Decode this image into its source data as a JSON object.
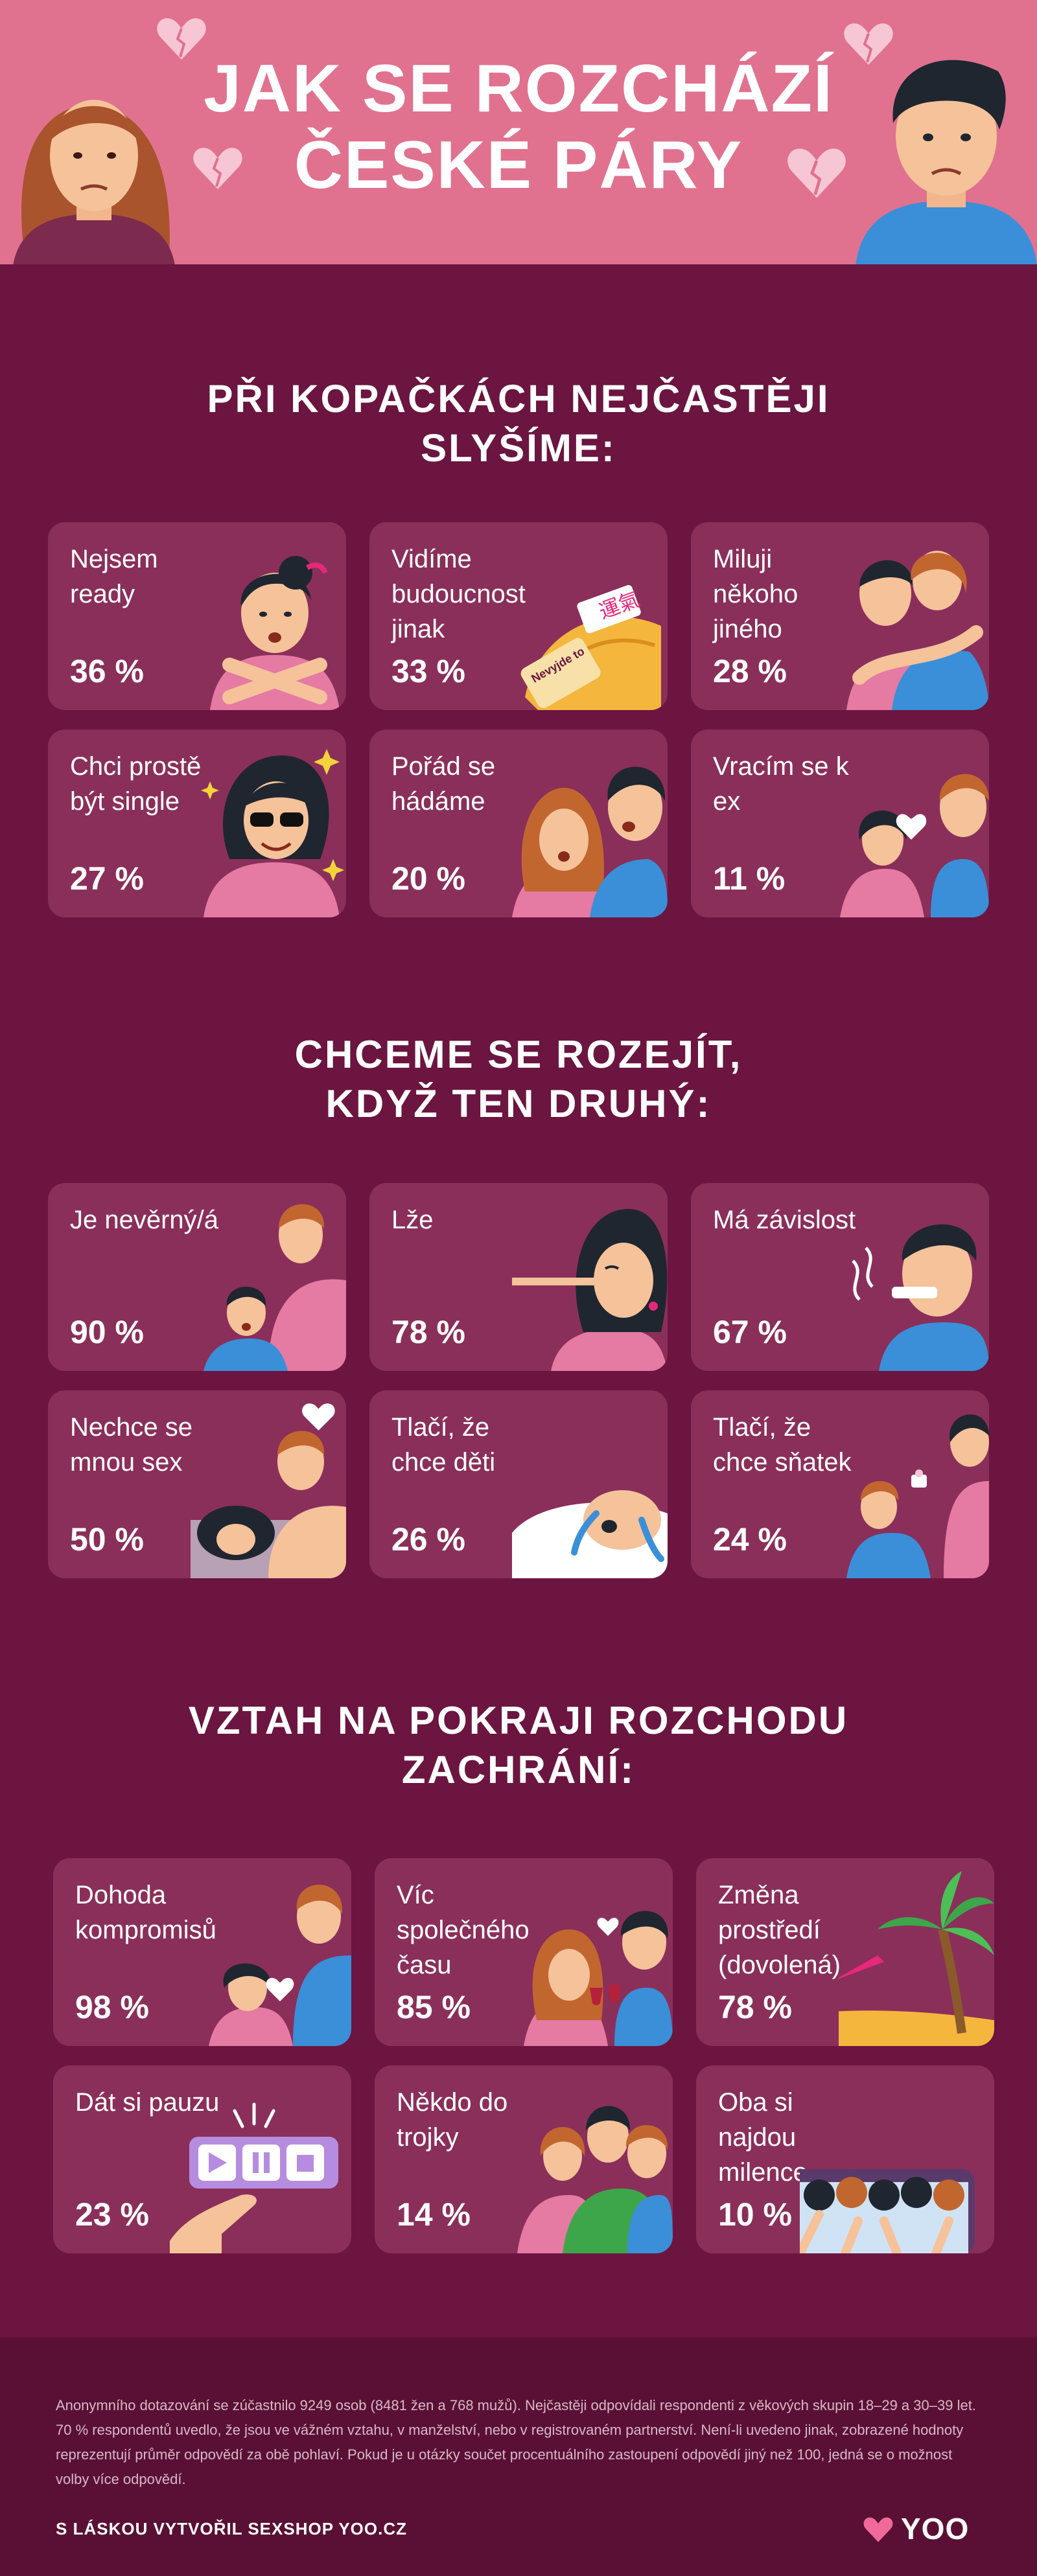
{
  "header": {
    "title_line1": "JAK SE ROZCHÁZÍ",
    "title_line2": "ČESKÉ PÁRY"
  },
  "sections": [
    {
      "title_line1": "PŘI KOPAČKÁCH NEJČASTĚJI",
      "title_line2": "SLYŠÍME:",
      "cards": [
        {
          "label": "Nejsem ready",
          "value": "36 %",
          "icon": "woman-crossed-arms-icon"
        },
        {
          "label": "Vidíme budoucnost jinak",
          "value": "33 %",
          "icon": "fortune-cookie-icon",
          "cookie_text": "Nevyjde to",
          "cookie_glyph": "運氣"
        },
        {
          "label": "Miluji někoho jiného",
          "value": "28 %",
          "icon": "hugging-couple-icon"
        },
        {
          "label": "Chci prostě být single",
          "value": "27 %",
          "icon": "woman-sunglasses-icon"
        },
        {
          "label": "Pořád se hádáme",
          "value": "20 %",
          "icon": "arguing-couple-icon"
        },
        {
          "label": "Vracím se k ex",
          "value": "11 %",
          "icon": "broken-heart-couple-icon"
        }
      ]
    },
    {
      "title_line1": "CHCEME SE ROZEJÍT,",
      "title_line2": "KDYŽ TEN DRUHÝ:",
      "cards": [
        {
          "label": "Je nevěrný/á",
          "value": "90 %",
          "icon": "cheating-couple-icon"
        },
        {
          "label": "Lže",
          "value": "78 %",
          "icon": "long-nose-liar-icon"
        },
        {
          "label": "Má závislost",
          "value": "67 %",
          "icon": "smoking-man-icon"
        },
        {
          "label": "Nechce se mnou sex",
          "value": "50 %",
          "icon": "couple-in-bed-icon"
        },
        {
          "label": "Tlačí, že chce děti",
          "value": "26 %",
          "icon": "crying-baby-icon"
        },
        {
          "label": "Tlačí, že chce sňatek",
          "value": "24 %",
          "icon": "proposal-icon"
        }
      ]
    },
    {
      "title_line1": "VZTAH NA POKRAJI ROZCHODU",
      "title_line2": "ZACHRÁNÍ:",
      "cards": [
        {
          "label": "Dohoda kompromisů",
          "value": "98 %",
          "icon": "compromise-couple-icon"
        },
        {
          "label": "Víc společného času",
          "value": "85 %",
          "icon": "wine-toast-icon"
        },
        {
          "label": "Změna prostředí (dovolená)",
          "value": "78 %",
          "icon": "beach-palm-icon"
        },
        {
          "label": "Dát si pauzu",
          "value": "23 %",
          "icon": "pause-button-icon"
        },
        {
          "label": "Někdo do trojky",
          "value": "14 %",
          "icon": "threesome-hug-icon"
        },
        {
          "label": "Oba si najdou milence",
          "value": "10 %",
          "icon": "crowd-in-bed-icon"
        }
      ]
    }
  ],
  "footer": {
    "note": "Anonymního dotazování se zúčastnilo 9249 osob (8481 žen a 768 mužů). Nejčastěji odpovídali respondenti z věkových skupin 18–29 a 30–39 let. 70 % respondentů uvedlo, že jsou ve vážném vztahu, v manželství, nebo v registrovaném partnerství. Není-li uvedeno jinak, zobrazené hodnoty reprezentují průměr odpovědí za obě pohlaví. Pokud je u otázky součet procentuálního zastoupení odpovědí jiný než 100, jedná se o možnost volby více odpovědí.",
    "credit": "S LÁSKOU VYTVOŘIL SEXSHOP YOO.CZ",
    "logo_text": "YOO"
  },
  "colors": {
    "background": "#6b1540",
    "header": "#e0728f",
    "card": "#8a2f5a",
    "footer": "#5a1034",
    "skin": "#f5c29a",
    "pink": "#e57aa3",
    "blue": "#3a8fd8"
  }
}
